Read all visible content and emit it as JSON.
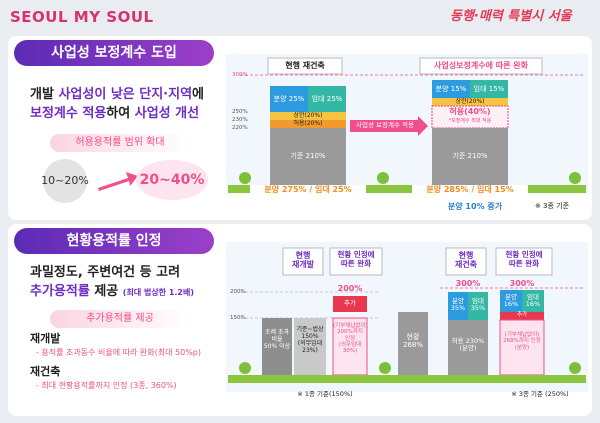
{
  "header": {
    "logo": "SEOUL MY SOUL",
    "slogan": "동행·매력 특별시 서울"
  },
  "section1": {
    "title": "사업성 보정계수 도입",
    "headline": {
      "line1": [
        "개발 ",
        "사업성이 낮은 단지·지역",
        "에"
      ],
      "line2": [
        "보정계수 적용",
        "하여 ",
        "사업성 개선"
      ]
    },
    "pill": "허용용적률 범위 확대",
    "from": "10~20%",
    "to": "20~40%",
    "diagram": {
      "current_title": "현행 재건축",
      "relaxed_title": "사업성보정계수에 따른 완화",
      "axis_labels": [
        "300%",
        "250%",
        "230%",
        "220%"
      ],
      "current": {
        "sale": "분양 25%",
        "rent": "임대 25%",
        "cap": "상한(20%)",
        "allow": "허용(20%)",
        "base": "기준 210%",
        "total": "분양 275% / 임대 25%"
      },
      "relaxed": {
        "sale": "분양 15%",
        "rent": "임대 15%",
        "cap": "상한(20%)",
        "allow": "허용(40%)",
        "allow_note": "*보정계수 최대 적용",
        "base": "기준 210%",
        "total": "분양 285% / 임대 15%"
      },
      "arrow": "사업성 보정계수 적용",
      "increase": "분양 10% 증가",
      "note": "※ 3종 기준"
    }
  },
  "section2": {
    "title": "현황용적률 인정",
    "line1": "과밀정도, 주변여건 등 고려",
    "line2": [
      "추가용적률",
      " 제공 ",
      "(최대 법상한 1.2배)"
    ],
    "pill": "추가용적률 제공",
    "items": [
      {
        "head": "재개발",
        "desc": "- 용적률 초과동수 비율에 따라 완화(최대 50%p)"
      },
      {
        "head": "재건축",
        "desc": "- 최대 현황용적률까지 인정 (3종, 360%)"
      }
    ],
    "diagram": {
      "redevelopment": {
        "current_title": [
          "현행",
          "재개발"
        ],
        "relaxed_title": [
          "현황 인정에",
          "따른 완화"
        ],
        "axis_labels": [
          "200%",
          "150%"
        ],
        "excess": [
          "조례 초과",
          "비율",
          "50% 이상"
        ],
        "base": [
          "기준~법상",
          "150%",
          "(의무임대",
          "23%)"
        ],
        "top": "200%",
        "extra": "추가",
        "relaxed": [
          "(기부채납없이)",
          "200%까지",
          "인정",
          "(의무임대",
          "30%)"
        ],
        "note": "※ 1종 기준(150%)"
      },
      "reconstruction": {
        "current": [
          "현황",
          "268%"
        ],
        "current_title": [
          "현행",
          "재건축"
        ],
        "relaxed_title": [
          "현황 인정에",
          "따른 완화"
        ],
        "top_current": "300%",
        "top_relaxed": "300%",
        "sale_current": [
          "분양",
          "35%"
        ],
        "rent_current": [
          "임대",
          "35%"
        ],
        "allow": [
          "허용 230%",
          "(분양)"
        ],
        "sale_relaxed": [
          "분양",
          "16%"
        ],
        "rent_relaxed": [
          "임대",
          "16%"
        ],
        "extra": "추가",
        "relaxed": [
          "(기부채납없이)",
          "268%까지 인정",
          "(분양)"
        ],
        "note": "※ 3종 기준 (250%)"
      }
    }
  }
}
